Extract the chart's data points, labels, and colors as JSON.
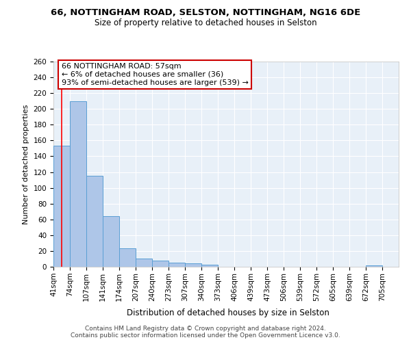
{
  "title1": "66, NOTTINGHAM ROAD, SELSTON, NOTTINGHAM, NG16 6DE",
  "title2": "Size of property relative to detached houses in Selston",
  "xlabel": "Distribution of detached houses by size in Selston",
  "ylabel": "Number of detached properties",
  "bin_labels": [
    "41sqm",
    "74sqm",
    "107sqm",
    "141sqm",
    "174sqm",
    "207sqm",
    "240sqm",
    "273sqm",
    "307sqm",
    "340sqm",
    "373sqm",
    "406sqm",
    "439sqm",
    "473sqm",
    "506sqm",
    "539sqm",
    "572sqm",
    "605sqm",
    "639sqm",
    "672sqm",
    "705sqm"
  ],
  "bar_heights": [
    153,
    210,
    115,
    64,
    23,
    10,
    8,
    5,
    4,
    3,
    0,
    0,
    0,
    0,
    0,
    0,
    0,
    0,
    0,
    2,
    0
  ],
  "bar_color": "#aec6e8",
  "bar_edge_color": "#5a9fd4",
  "property_sqm": 57,
  "annotation_text": "66 NOTTINGHAM ROAD: 57sqm\n← 6% of detached houses are smaller (36)\n93% of semi-detached houses are larger (539) →",
  "annotation_box_color": "#ffffff",
  "annotation_box_edge": "#cc0000",
  "ylim": [
    0,
    260
  ],
  "yticks": [
    0,
    20,
    40,
    60,
    80,
    100,
    120,
    140,
    160,
    180,
    200,
    220,
    240,
    260
  ],
  "background_color": "#e8f0f8",
  "footer_text": "Contains HM Land Registry data © Crown copyright and database right 2024.\nContains public sector information licensed under the Open Government Licence v3.0.",
  "title1_fontsize": 9.5,
  "title2_fontsize": 8.5,
  "xlabel_fontsize": 8.5,
  "ylabel_fontsize": 8,
  "tick_fontsize": 7.5,
  "annotation_fontsize": 8,
  "footer_fontsize": 6.5
}
